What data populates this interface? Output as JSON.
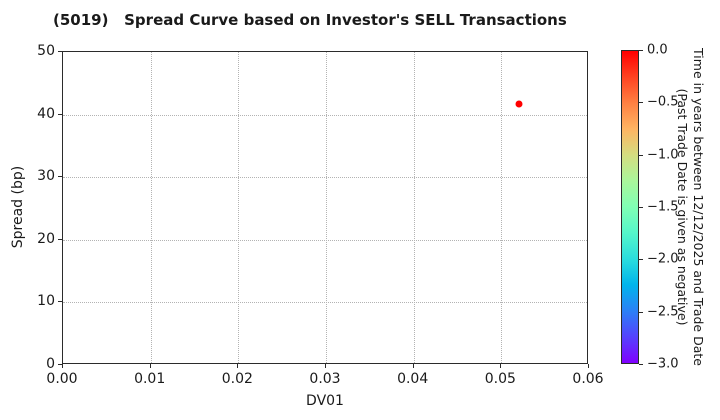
{
  "chart_data": {
    "type": "scatter",
    "title": "(5019)   Spread Curve based on Investor's SELL Transactions",
    "xlabel": "DV01",
    "ylabel": "Spread (bp)",
    "xlim": [
      0.0,
      0.06
    ],
    "ylim": [
      0,
      50
    ],
    "grid": "dotted",
    "legend_position": "none",
    "x_ticks": [
      {
        "value": 0.0,
        "label": "0.00"
      },
      {
        "value": 0.01,
        "label": "0.01"
      },
      {
        "value": 0.02,
        "label": "0.02"
      },
      {
        "value": 0.03,
        "label": "0.03"
      },
      {
        "value": 0.04,
        "label": "0.04"
      },
      {
        "value": 0.05,
        "label": "0.05"
      },
      {
        "value": 0.06,
        "label": "0.06"
      }
    ],
    "y_ticks": [
      {
        "value": 0,
        "label": "0"
      },
      {
        "value": 10,
        "label": "10"
      },
      {
        "value": 20,
        "label": "20"
      },
      {
        "value": 30,
        "label": "30"
      },
      {
        "value": 40,
        "label": "40"
      },
      {
        "value": 50,
        "label": "50"
      }
    ],
    "points": [
      {
        "x": 0.052,
        "y": 41.7,
        "color_value": 0.0,
        "color": "#ff0000"
      }
    ],
    "colorbar": {
      "label_line1": "Time in years between 12/12/2025 and Trade Date",
      "label_line2": "(Past Trade Date is given as negative)",
      "range_top": 0.0,
      "range_bottom": -3.0,
      "colormap": "rainbow-reversed",
      "ticks": [
        {
          "value": 0.0,
          "label": "0.0"
        },
        {
          "value": -0.5,
          "label": "−0.5"
        },
        {
          "value": -1.0,
          "label": "−1.0"
        },
        {
          "value": -1.5,
          "label": "−1.5"
        },
        {
          "value": -2.0,
          "label": "−2.0"
        },
        {
          "value": -2.5,
          "label": "−2.5"
        },
        {
          "value": -3.0,
          "label": "−3.0"
        }
      ],
      "gradient_stops": [
        {
          "pos": 0.0,
          "color": "#ff0000"
        },
        {
          "pos": 0.0833,
          "color": "#ff4221"
        },
        {
          "pos": 0.1667,
          "color": "#ff8042"
        },
        {
          "pos": 0.25,
          "color": "#ffb462"
        },
        {
          "pos": 0.3333,
          "color": "#d5dd80"
        },
        {
          "pos": 0.4167,
          "color": "#aaf69b"
        },
        {
          "pos": 0.5,
          "color": "#80ffb4"
        },
        {
          "pos": 0.5833,
          "color": "#55f6ca"
        },
        {
          "pos": 0.6667,
          "color": "#2bdddd"
        },
        {
          "pos": 0.75,
          "color": "#00b4ec"
        },
        {
          "pos": 0.8333,
          "color": "#2b80f6"
        },
        {
          "pos": 0.9167,
          "color": "#5542fd"
        },
        {
          "pos": 1.0,
          "color": "#8000ff"
        }
      ]
    },
    "colors": {
      "axis": "#2b2b2b",
      "grid": "#b3b3b3",
      "text": "#1a1a1a",
      "background": "#ffffff"
    }
  }
}
